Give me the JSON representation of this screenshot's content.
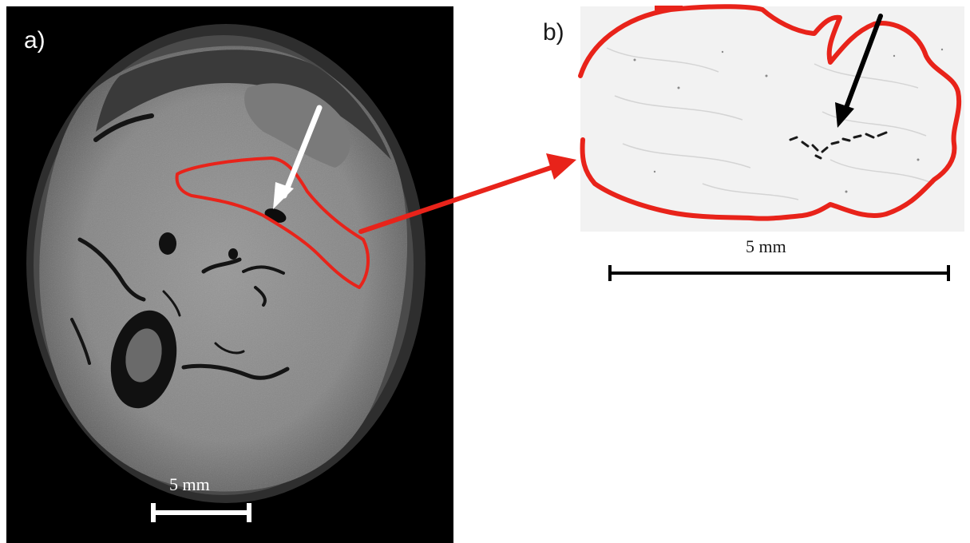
{
  "panel_a": {
    "label": "a)",
    "scale_bar_label": "5 mm",
    "colors": {
      "background": "#000000",
      "tissue": "#8a8a8a",
      "roi_outline": "#e8231a",
      "arrow": "#ffffff",
      "scale_bar": "#ffffff"
    }
  },
  "panel_b": {
    "label": "b)",
    "scale_bar_label": "5 mm",
    "colors": {
      "background": "#f2f2f2",
      "roi_outline": "#e8231a",
      "arrow": "#000000",
      "scale_bar": "#000000"
    }
  },
  "connector": {
    "color": "#e8231a"
  }
}
